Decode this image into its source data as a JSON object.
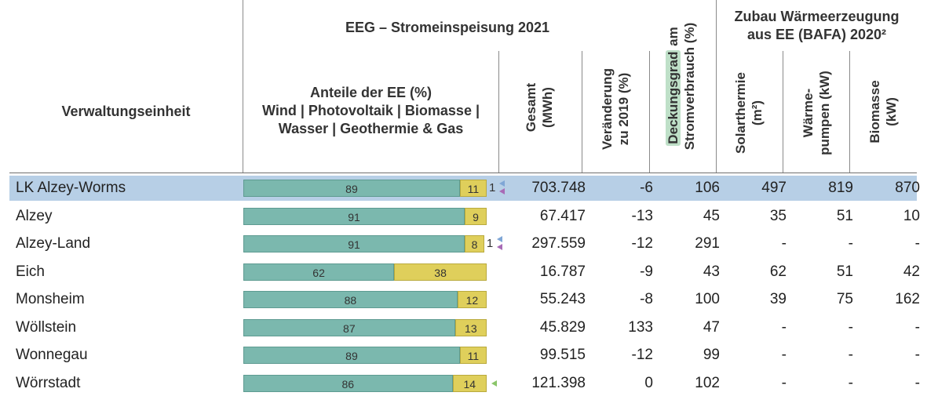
{
  "header": {
    "einheit": "Verwaltungseinheit",
    "eeg_group": "EEG – Stromeinspeisung 2021",
    "anteile_l1": "Anteile der EE (%)",
    "anteile_l2": "Wind | Photovoltaik | Biomasse |",
    "anteile_l3": "Wasser | Geothermie & Gas",
    "gesamt_l1": "Gesamt",
    "gesamt_l2": "(MWh)",
    "veraenderung_l1": "Veränderung",
    "veraenderung_l2": "zu 2019 (%)",
    "deckung_a": "Deckungsgrad",
    "deckung_b": " am",
    "deckung_l2": "Stromverbrauch (%)",
    "zubau_l1": "Zubau Wärmeerzeugung",
    "zubau_l2": "aus EE (BAFA) 2020²",
    "solar_l1": "Solarthermie",
    "solar_l2": "(m²)",
    "waerme_l1": "Wärme-",
    "waerme_l2": "pumpen (kW)",
    "bio_l1": "Biomasse",
    "bio_l2": "(kW)"
  },
  "colors": {
    "wind": "#7bb8ae",
    "photovoltaik": "#dfcf5b",
    "biomasse": "#8ac56a",
    "wasser": "#7fa6d6",
    "geothermie_gas": "#a86bb6",
    "highlight_row": "#b7cfe6"
  },
  "rows": [
    {
      "name": "LK Alzey-Worms",
      "wind": 89,
      "pv": 11,
      "extra": "1",
      "markers": [
        "wasser",
        "geothermie_gas"
      ],
      "gesamt": "703.748",
      "veraenderung": "-6",
      "deckung": "106",
      "solar": "497",
      "waerme": "819",
      "bio": "870",
      "highlight": true
    },
    {
      "name": "Alzey",
      "wind": 91,
      "pv": 9,
      "extra": "",
      "markers": [],
      "gesamt": "67.417",
      "veraenderung": "-13",
      "deckung": "45",
      "solar": "35",
      "waerme": "51",
      "bio": "10",
      "highlight": false
    },
    {
      "name": "Alzey-Land",
      "wind": 91,
      "pv": 8,
      "extra": "1",
      "markers": [
        "wasser",
        "geothermie_gas"
      ],
      "gesamt": "297.559",
      "veraenderung": "-12",
      "deckung": "291",
      "solar": "-",
      "waerme": "-",
      "bio": "-",
      "highlight": false
    },
    {
      "name": "Eich",
      "wind": 62,
      "pv": 38,
      "extra": "",
      "markers": [],
      "gesamt": "16.787",
      "veraenderung": "-9",
      "deckung": "43",
      "solar": "62",
      "waerme": "51",
      "bio": "42",
      "highlight": false
    },
    {
      "name": "Monsheim",
      "wind": 88,
      "pv": 12,
      "extra": "",
      "markers": [],
      "gesamt": "55.243",
      "veraenderung": "-8",
      "deckung": "100",
      "solar": "39",
      "waerme": "75",
      "bio": "162",
      "highlight": false
    },
    {
      "name": "Wöllstein",
      "wind": 87,
      "pv": 13,
      "extra": "",
      "markers": [],
      "gesamt": "45.829",
      "veraenderung": "133",
      "deckung": "47",
      "solar": "-",
      "waerme": "-",
      "bio": "-",
      "highlight": false
    },
    {
      "name": "Wonnegau",
      "wind": 89,
      "pv": 11,
      "extra": "",
      "markers": [],
      "gesamt": "99.515",
      "veraenderung": "-12",
      "deckung": "99",
      "solar": "-",
      "waerme": "-",
      "bio": "-",
      "highlight": false
    },
    {
      "name": "Wörrstadt",
      "wind": 86,
      "pv": 14,
      "extra": "",
      "markers": [
        "biomasse"
      ],
      "gesamt": "121.398",
      "veraenderung": "0",
      "deckung": "102",
      "solar": "-",
      "waerme": "-",
      "bio": "-",
      "highlight": false
    }
  ]
}
